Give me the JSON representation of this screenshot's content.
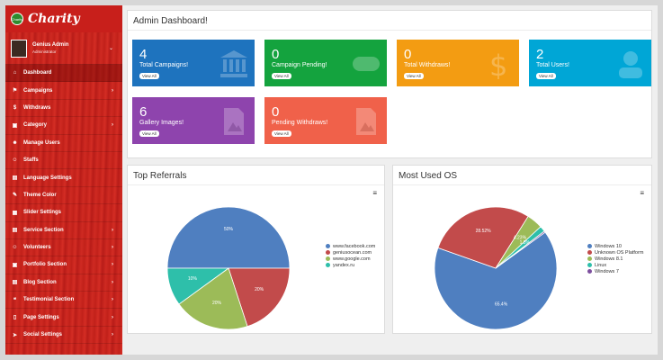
{
  "brand": {
    "logo_text": "Charity",
    "name": "Charity"
  },
  "user": {
    "name": "Genius Admin",
    "role": "Administrator"
  },
  "menu": [
    {
      "label": "Dashboard",
      "icon": "home-icon",
      "glyph": "⌂",
      "arrow": ""
    },
    {
      "label": "Campaigns",
      "icon": "flag-icon",
      "glyph": "⚑",
      "arrow": "›"
    },
    {
      "label": "Withdraws",
      "icon": "dollar-icon",
      "glyph": "$",
      "arrow": ""
    },
    {
      "label": "Category",
      "icon": "folder-icon",
      "glyph": "▣",
      "arrow": "›"
    },
    {
      "label": "Manage Users",
      "icon": "users-icon",
      "glyph": "☻",
      "arrow": ""
    },
    {
      "label": "Staffs",
      "icon": "staff-icon",
      "glyph": "☺",
      "arrow": ""
    },
    {
      "label": "Language Settings",
      "icon": "language-icon",
      "glyph": "▤",
      "arrow": ""
    },
    {
      "label": "Theme Color",
      "icon": "palette-icon",
      "glyph": "✎",
      "arrow": ""
    },
    {
      "label": "Slider Settings",
      "icon": "slider-icon",
      "glyph": "▦",
      "arrow": ""
    },
    {
      "label": "Service Section",
      "icon": "service-icon",
      "glyph": "▤",
      "arrow": "›"
    },
    {
      "label": "Volunteers",
      "icon": "volunteer-icon",
      "glyph": "☺",
      "arrow": "›"
    },
    {
      "label": "Portfolio Section",
      "icon": "portfolio-icon",
      "glyph": "▣",
      "arrow": "›"
    },
    {
      "label": "Blog Section",
      "icon": "blog-icon",
      "glyph": "▤",
      "arrow": "›"
    },
    {
      "label": "Testimonial Section",
      "icon": "testimonial-icon",
      "glyph": "❝",
      "arrow": "›"
    },
    {
      "label": "Page Settings",
      "icon": "page-icon",
      "glyph": "▯",
      "arrow": "›"
    },
    {
      "label": "Social Settings",
      "icon": "share-icon",
      "glyph": "➤",
      "arrow": "›"
    }
  ],
  "dashboard": {
    "title": "Admin Dashboard!",
    "cards": [
      {
        "number": "4",
        "label": "Total Campaigns!",
        "button": "View All",
        "color": "#1e73be",
        "icon": "bank-icon"
      },
      {
        "number": "0",
        "label": "Campaign Pending!",
        "button": "View All",
        "color": "#14a33e",
        "icon": "gamepad-icon"
      },
      {
        "number": "0",
        "label": "Total Withdraws!",
        "button": "View All",
        "color": "#f39c12",
        "icon": "dollar-icon"
      },
      {
        "number": "2",
        "label": "Total Users!",
        "button": "View All",
        "color": "#00a6d6",
        "icon": "user-icon"
      },
      {
        "number": "6",
        "label": "Gallery Images!",
        "button": "View All",
        "color": "#8e44ad",
        "icon": "image-icon"
      },
      {
        "number": "0",
        "label": "Pending Withdraws!",
        "button": "View All",
        "color": "#f0614a",
        "icon": "image-icon"
      }
    ]
  },
  "panels": {
    "referrals_title": "Top Referrals",
    "os_title": "Most Used OS",
    "menu_glyph": "≡"
  },
  "chart_data": [
    {
      "type": "pie",
      "title": "Top Referrals",
      "series": [
        {
          "name": "www.facebook.com",
          "value": 50,
          "label": "50%",
          "color": "#4f7fc0"
        },
        {
          "name": "geniusocean.com",
          "value": 20,
          "label": "20%",
          "color": "#c24b4b"
        },
        {
          "name": "www.google.com",
          "value": 20,
          "label": "20%",
          "color": "#9cbb58"
        },
        {
          "name": "yandex.ru",
          "value": 10,
          "label": "10%",
          "color": "#2ebfaa"
        }
      ],
      "legend": "right"
    },
    {
      "type": "pie",
      "title": "Most Used OS",
      "series": [
        {
          "name": "Windows 10",
          "value": 65.4,
          "label": "65.4%",
          "color": "#4f7fc0"
        },
        {
          "name": "Unknown OS Platform",
          "value": 28.52,
          "label": "28.52%",
          "color": "#c24b4b"
        },
        {
          "name": "Windows 8.1",
          "value": 4.23,
          "label": "4.23%",
          "color": "#9cbb58"
        },
        {
          "name": "Linux",
          "value": 1.5,
          "label": "1.5%",
          "color": "#2ebfaa"
        },
        {
          "name": "Windows 7",
          "value": 0.35,
          "label": "",
          "color": "#7d4f9e"
        }
      ],
      "legend": "right"
    }
  ]
}
